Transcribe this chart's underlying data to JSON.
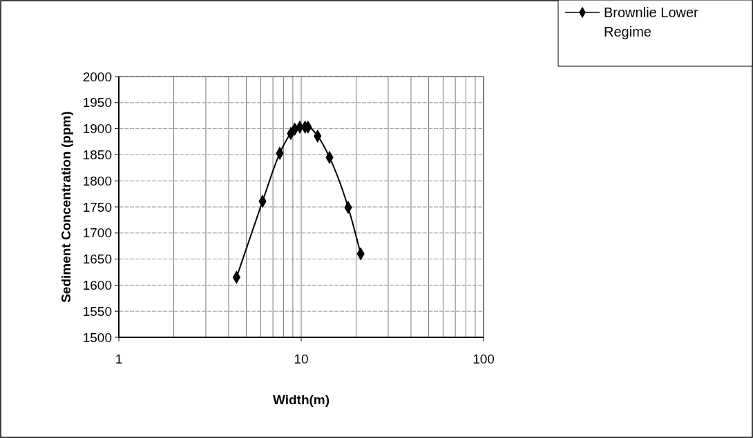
{
  "chart_data": {
    "type": "line",
    "xlabel": "Width(m)",
    "ylabel": "Sediment Concentration (ppm)",
    "log": "x",
    "grid": true,
    "legend": "top right",
    "marker": "diamond",
    "line_style": "solid",
    "xlim": [
      1,
      100
    ],
    "ylim": [
      1500,
      2000
    ],
    "xticks": [
      1,
      {
        "value": 2,
        "label": null
      },
      {
        "value": 3,
        "label": null
      },
      {
        "value": 4,
        "label": null
      },
      {
        "value": 5,
        "label": null
      },
      {
        "value": 6,
        "label": null
      },
      {
        "value": 7,
        "label": null
      },
      {
        "value": 8,
        "label": null
      },
      {
        "value": 9,
        "label": null
      },
      10,
      {
        "value": 20,
        "label": null
      },
      {
        "value": 30,
        "label": null
      },
      {
        "value": 40,
        "label": null
      },
      {
        "value": 50,
        "label": null
      },
      {
        "value": 60,
        "label": null
      },
      {
        "value": 70,
        "label": null
      },
      {
        "value": 80,
        "label": null
      },
      {
        "value": 90,
        "label": null
      },
      100
    ],
    "yticks": [
      1500,
      1550,
      1600,
      1650,
      1700,
      1750,
      1800,
      1850,
      1900,
      1950,
      2000
    ],
    "series": [
      {
        "name": "Brownlie Lower Regime",
        "color": "#000000",
        "x": [
          4.42,
          6.14,
          7.63,
          8.77,
          9.22,
          9.82,
          10.5,
          10.9,
          12.3,
          14.3,
          18.1,
          21.2
        ],
        "values": [
          1615,
          1761,
          1853,
          1891,
          1899,
          1903,
          1903,
          1903,
          1886,
          1845,
          1749,
          1660
        ]
      }
    ]
  }
}
